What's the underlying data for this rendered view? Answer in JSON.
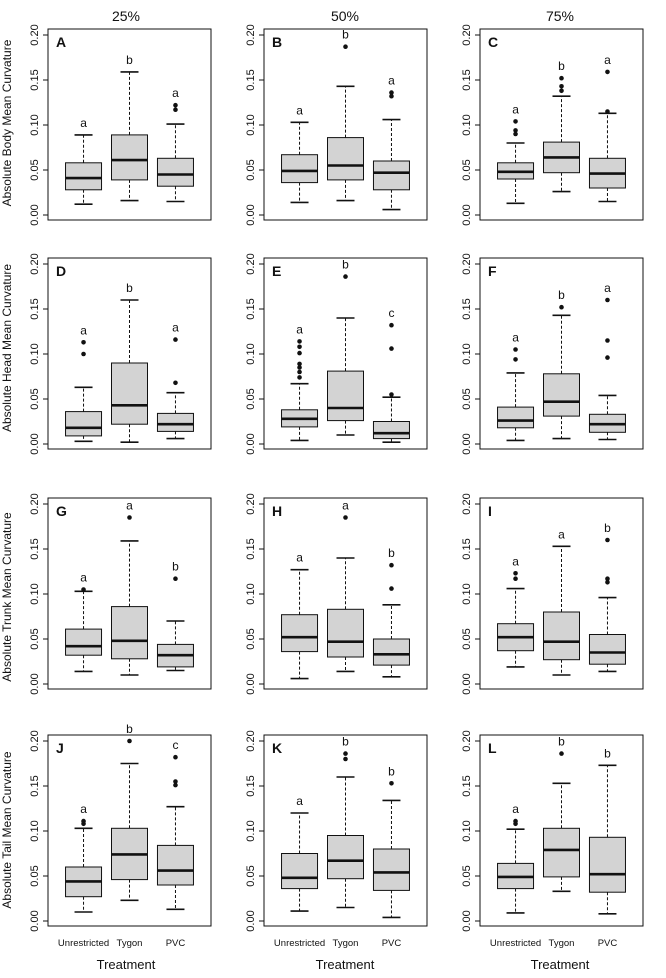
{
  "colors": {
    "box_fill": "#d3d3d3",
    "stroke": "#111111",
    "background": "#ffffff"
  },
  "percent_labels": [
    "25%",
    "50%",
    "75%"
  ],
  "row_ylabels": [
    "Absolute Body Mean Curvature",
    "Absolute Head Mean Curvature",
    "Absolute Trunk Mean Curvature",
    "Absolute Tail Mean Curvature"
  ],
  "xlabel": "Treatment",
  "chart_data": {
    "type": "boxplot",
    "categories": [
      "Unrestricted",
      "Tygon",
      "PVC"
    ],
    "ylim": [
      0,
      0.2
    ],
    "yticks": [
      "0.00",
      "0.05",
      "0.10",
      "0.15",
      "0.20"
    ],
    "panels": [
      {
        "letter": "A",
        "row": 0,
        "col": 0,
        "boxes": [
          {
            "q1": 0.028,
            "med": 0.041,
            "q3": 0.058,
            "lo": 0.012,
            "hi": 0.089,
            "out": [],
            "sig": "a"
          },
          {
            "q1": 0.039,
            "med": 0.061,
            "q3": 0.089,
            "lo": 0.016,
            "hi": 0.159,
            "out": [],
            "sig": "b"
          },
          {
            "q1": 0.032,
            "med": 0.045,
            "q3": 0.063,
            "lo": 0.015,
            "hi": 0.101,
            "out": [
              0.117,
              0.122
            ],
            "sig": "a"
          }
        ]
      },
      {
        "letter": "B",
        "row": 0,
        "col": 1,
        "boxes": [
          {
            "q1": 0.036,
            "med": 0.049,
            "q3": 0.067,
            "lo": 0.014,
            "hi": 0.103,
            "out": [],
            "sig": "a"
          },
          {
            "q1": 0.039,
            "med": 0.055,
            "q3": 0.086,
            "lo": 0.016,
            "hi": 0.143,
            "out": [
              0.187
            ],
            "sig": "b"
          },
          {
            "q1": 0.028,
            "med": 0.047,
            "q3": 0.06,
            "lo": 0.006,
            "hi": 0.106,
            "out": [
              0.132,
              0.136
            ],
            "sig": "a"
          }
        ]
      },
      {
        "letter": "C",
        "row": 0,
        "col": 2,
        "boxes": [
          {
            "q1": 0.04,
            "med": 0.048,
            "q3": 0.058,
            "lo": 0.013,
            "hi": 0.08,
            "out": [
              0.09,
              0.094,
              0.104
            ],
            "sig": "a"
          },
          {
            "q1": 0.047,
            "med": 0.064,
            "q3": 0.081,
            "lo": 0.026,
            "hi": 0.132,
            "out": [
              0.138,
              0.143,
              0.152
            ],
            "sig": "b"
          },
          {
            "q1": 0.03,
            "med": 0.046,
            "q3": 0.063,
            "lo": 0.015,
            "hi": 0.113,
            "out": [
              0.115,
              0.159
            ],
            "sig": "a"
          }
        ]
      },
      {
        "letter": "D",
        "row": 1,
        "col": 0,
        "boxes": [
          {
            "q1": 0.009,
            "med": 0.018,
            "q3": 0.036,
            "lo": 0.003,
            "hi": 0.063,
            "out": [
              0.1,
              0.113
            ],
            "sig": "a"
          },
          {
            "q1": 0.022,
            "med": 0.043,
            "q3": 0.09,
            "lo": 0.002,
            "hi": 0.16,
            "out": [],
            "sig": "b"
          },
          {
            "q1": 0.014,
            "med": 0.022,
            "q3": 0.034,
            "lo": 0.006,
            "hi": 0.057,
            "out": [
              0.068,
              0.116
            ],
            "sig": "a"
          }
        ]
      },
      {
        "letter": "E",
        "row": 1,
        "col": 1,
        "boxes": [
          {
            "q1": 0.019,
            "med": 0.028,
            "q3": 0.038,
            "lo": 0.004,
            "hi": 0.067,
            "out": [
              0.074,
              0.08,
              0.085,
              0.089,
              0.101,
              0.108,
              0.114
            ],
            "sig": "a"
          },
          {
            "q1": 0.026,
            "med": 0.04,
            "q3": 0.081,
            "lo": 0.01,
            "hi": 0.14,
            "out": [
              0.186
            ],
            "sig": "b"
          },
          {
            "q1": 0.006,
            "med": 0.012,
            "q3": 0.025,
            "lo": 0.002,
            "hi": 0.052,
            "out": [
              0.055,
              0.106,
              0.132
            ],
            "sig": "c"
          }
        ]
      },
      {
        "letter": "F",
        "row": 1,
        "col": 2,
        "boxes": [
          {
            "q1": 0.018,
            "med": 0.026,
            "q3": 0.041,
            "lo": 0.004,
            "hi": 0.079,
            "out": [
              0.094,
              0.105
            ],
            "sig": "a"
          },
          {
            "q1": 0.031,
            "med": 0.047,
            "q3": 0.078,
            "lo": 0.006,
            "hi": 0.143,
            "out": [
              0.152
            ],
            "sig": "b"
          },
          {
            "q1": 0.013,
            "med": 0.022,
            "q3": 0.033,
            "lo": 0.005,
            "hi": 0.054,
            "out": [
              0.096,
              0.115,
              0.16
            ],
            "sig": "a"
          }
        ]
      },
      {
        "letter": "G",
        "row": 2,
        "col": 0,
        "boxes": [
          {
            "q1": 0.032,
            "med": 0.042,
            "q3": 0.061,
            "lo": 0.014,
            "hi": 0.103,
            "out": [
              0.105
            ],
            "sig": "a"
          },
          {
            "q1": 0.028,
            "med": 0.048,
            "q3": 0.086,
            "lo": 0.01,
            "hi": 0.159,
            "out": [
              0.185
            ],
            "sig": "a"
          },
          {
            "q1": 0.019,
            "med": 0.032,
            "q3": 0.044,
            "lo": 0.015,
            "hi": 0.07,
            "out": [
              0.117
            ],
            "sig": "b"
          }
        ]
      },
      {
        "letter": "H",
        "row": 2,
        "col": 1,
        "boxes": [
          {
            "q1": 0.036,
            "med": 0.052,
            "q3": 0.077,
            "lo": 0.006,
            "hi": 0.127,
            "out": [],
            "sig": "a"
          },
          {
            "q1": 0.03,
            "med": 0.047,
            "q3": 0.083,
            "lo": 0.014,
            "hi": 0.14,
            "out": [
              0.185
            ],
            "sig": "a"
          },
          {
            "q1": 0.021,
            "med": 0.033,
            "q3": 0.05,
            "lo": 0.008,
            "hi": 0.088,
            "out": [
              0.106,
              0.132
            ],
            "sig": "b"
          }
        ]
      },
      {
        "letter": "I",
        "row": 2,
        "col": 2,
        "boxes": [
          {
            "q1": 0.037,
            "med": 0.052,
            "q3": 0.067,
            "lo": 0.019,
            "hi": 0.106,
            "out": [
              0.117,
              0.123
            ],
            "sig": "a"
          },
          {
            "q1": 0.027,
            "med": 0.047,
            "q3": 0.08,
            "lo": 0.01,
            "hi": 0.153,
            "out": [],
            "sig": "a"
          },
          {
            "q1": 0.022,
            "med": 0.035,
            "q3": 0.055,
            "lo": 0.014,
            "hi": 0.096,
            "out": [
              0.113,
              0.117,
              0.16
            ],
            "sig": "b"
          }
        ]
      },
      {
        "letter": "J",
        "row": 3,
        "col": 0,
        "boxes": [
          {
            "q1": 0.027,
            "med": 0.044,
            "q3": 0.06,
            "lo": 0.01,
            "hi": 0.103,
            "out": [
              0.108,
              0.111
            ],
            "sig": "a"
          },
          {
            "q1": 0.046,
            "med": 0.074,
            "q3": 0.103,
            "lo": 0.023,
            "hi": 0.175,
            "out": [
              0.2
            ],
            "sig": "b"
          },
          {
            "q1": 0.04,
            "med": 0.056,
            "q3": 0.084,
            "lo": 0.013,
            "hi": 0.127,
            "out": [
              0.151,
              0.155,
              0.182
            ],
            "sig": "c"
          }
        ]
      },
      {
        "letter": "K",
        "row": 3,
        "col": 1,
        "boxes": [
          {
            "q1": 0.036,
            "med": 0.048,
            "q3": 0.075,
            "lo": 0.011,
            "hi": 0.12,
            "out": [],
            "sig": "a"
          },
          {
            "q1": 0.047,
            "med": 0.067,
            "q3": 0.095,
            "lo": 0.015,
            "hi": 0.16,
            "out": [
              0.18,
              0.186
            ],
            "sig": "b"
          },
          {
            "q1": 0.034,
            "med": 0.054,
            "q3": 0.08,
            "lo": 0.004,
            "hi": 0.134,
            "out": [
              0.153
            ],
            "sig": "b"
          }
        ]
      },
      {
        "letter": "L",
        "row": 3,
        "col": 2,
        "boxes": [
          {
            "q1": 0.036,
            "med": 0.049,
            "q3": 0.064,
            "lo": 0.009,
            "hi": 0.102,
            "out": [
              0.108,
              0.111
            ],
            "sig": "a"
          },
          {
            "q1": 0.049,
            "med": 0.079,
            "q3": 0.103,
            "lo": 0.033,
            "hi": 0.153,
            "out": [
              0.186
            ],
            "sig": "b"
          },
          {
            "q1": 0.032,
            "med": 0.052,
            "q3": 0.093,
            "lo": 0.008,
            "hi": 0.173,
            "out": [],
            "sig": "b"
          }
        ]
      }
    ]
  }
}
